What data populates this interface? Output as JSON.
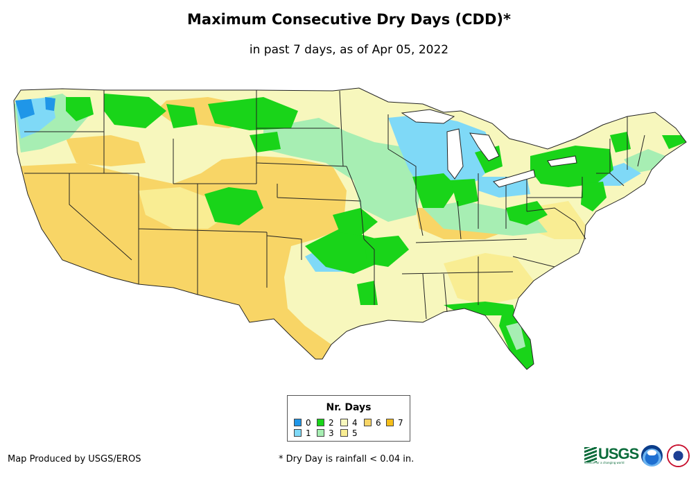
{
  "title": "Maximum Consecutive Dry Days (CDD)*",
  "subtitle": "in past 7 days, as of Apr 05, 2022",
  "legend": {
    "title": "Nr. Days",
    "items": [
      {
        "label": "0",
        "color": "#1f96e8"
      },
      {
        "label": "1",
        "color": "#7fd9f7"
      },
      {
        "label": "2",
        "color": "#19d419"
      },
      {
        "label": "3",
        "color": "#a7eeb3"
      },
      {
        "label": "4",
        "color": "#f7f7bd"
      },
      {
        "label": "5",
        "color": "#f9ed93"
      },
      {
        "label": "6",
        "color": "#f8d566"
      },
      {
        "label": "7",
        "color": "#f5be1a"
      }
    ]
  },
  "credit": "Map Produced by USGS/EROS",
  "footnote": "* Dry Day is rainfall < 0.04 in.",
  "logos": {
    "usgs": "USGS",
    "usgs_tagline": "science for a changing world",
    "noaa": "noaa",
    "nws": "NATIONAL WEATHER SERVICE"
  }
}
